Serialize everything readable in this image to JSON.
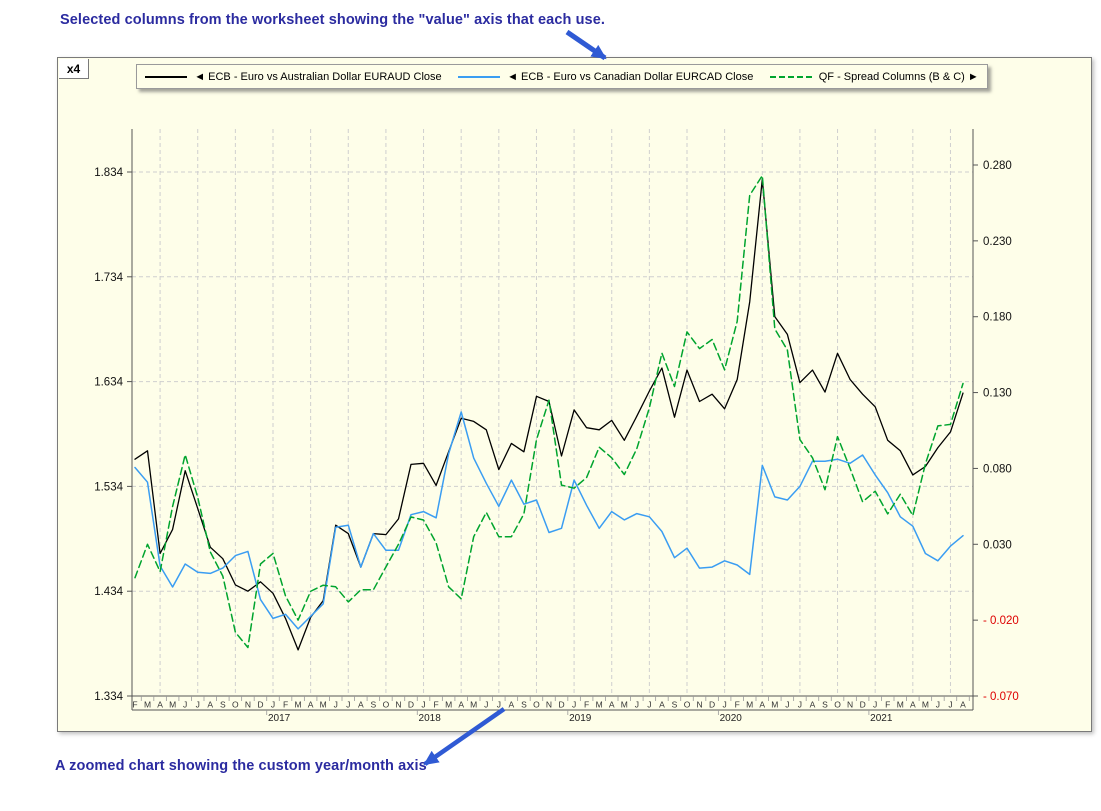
{
  "annotations": {
    "top": "Selected columns from the worksheet showing the \"value\" axis that each use.",
    "bottom": "A zoomed chart showing the custom year/month axis",
    "text_color": "#2B2BA0",
    "arrow_color": "#2F5AD4"
  },
  "corner": {
    "label": "x4"
  },
  "legend": {
    "items": [
      {
        "label": "◄ ECB - Euro  vs Australian Dollar EURAUD Close",
        "series": "euraud"
      },
      {
        "label": "◄ ECB - Euro  vs Canadian Dollar EURCAD Close",
        "series": "eurcad"
      },
      {
        "label": "QF - Spread  Columns  (B & C) ►",
        "series": "spread"
      }
    ]
  },
  "chart_data": {
    "type": "line",
    "title": "",
    "xlabel": "",
    "ylabel_left": "",
    "ylabel_right": "",
    "grid": true,
    "x_start": "Feb 2016",
    "x_end": "Aug 2021",
    "months": [
      "F",
      "M",
      "A",
      "M",
      "J",
      "J",
      "A",
      "S",
      "O",
      "N",
      "D",
      "J",
      "F",
      "M",
      "A",
      "M",
      "J",
      "J",
      "A",
      "S",
      "O",
      "N",
      "D",
      "J",
      "F",
      "M",
      "A",
      "M",
      "J",
      "J",
      "A",
      "S",
      "O",
      "N",
      "D",
      "J",
      "F",
      "M",
      "A",
      "M",
      "J",
      "J",
      "A",
      "S",
      "O",
      "N",
      "D",
      "J",
      "F",
      "M",
      "A",
      "M",
      "J",
      "J",
      "A",
      "S",
      "O",
      "N",
      "D",
      "J",
      "F",
      "M",
      "A",
      "M",
      "J",
      "J",
      "A"
    ],
    "years": [
      {
        "label": "2017",
        "index": 11
      },
      {
        "label": "2018",
        "index": 23
      },
      {
        "label": "2019",
        "index": 35
      },
      {
        "label": "2020",
        "index": 47
      },
      {
        "label": "2021",
        "index": 59
      }
    ],
    "left_axis": {
      "labels": [
        "1.834",
        "1.734",
        "1.634",
        "1.534",
        "1.434",
        "1.334"
      ],
      "values": [
        1.834,
        1.734,
        1.634,
        1.534,
        1.434,
        1.334
      ],
      "min": 1.334,
      "max": 1.834,
      "color": "#111111"
    },
    "right_axis": {
      "labels": [
        "0.280",
        "0.230",
        "0.180",
        "0.130",
        "0.080",
        "0.030",
        "- 0.020",
        "- 0.070"
      ],
      "values": [
        0.28,
        0.23,
        0.18,
        0.13,
        0.08,
        0.03,
        -0.02,
        -0.07
      ],
      "min": -0.07,
      "max": 0.28,
      "color": "#111111",
      "negative_color": "#de0000"
    },
    "series": [
      {
        "id": "euraud",
        "name": "ECB - Euro vs Australian Dollar EURAUD Close",
        "axis": "left",
        "color": "#000000",
        "dash": null,
        "width": 1.3,
        "values": [
          1.56,
          1.568,
          1.47,
          1.493,
          1.549,
          1.513,
          1.476,
          1.465,
          1.44,
          1.434,
          1.443,
          1.432,
          1.408,
          1.378,
          1.409,
          1.425,
          1.497,
          1.489,
          1.457,
          1.489,
          1.488,
          1.503,
          1.555,
          1.556,
          1.535,
          1.567,
          1.599,
          1.596,
          1.588,
          1.55,
          1.575,
          1.567,
          1.62,
          1.615,
          1.563,
          1.607,
          1.59,
          1.588,
          1.597,
          1.578,
          1.601,
          1.625,
          1.647,
          1.6,
          1.645,
          1.615,
          1.622,
          1.608,
          1.636,
          1.71,
          1.827,
          1.696,
          1.679,
          1.633,
          1.645,
          1.624,
          1.661,
          1.636,
          1.622,
          1.61,
          1.578,
          1.568,
          1.545,
          1.553,
          1.571,
          1.586,
          1.623
        ]
      },
      {
        "id": "eurcad",
        "name": "ECB - Euro vs Canadian Dollar EURCAD Close",
        "axis": "left",
        "color": "#3a9df2",
        "dash": null,
        "width": 1.5,
        "values": [
          1.552,
          1.538,
          1.458,
          1.438,
          1.46,
          1.452,
          1.451,
          1.456,
          1.468,
          1.472,
          1.426,
          1.408,
          1.412,
          1.398,
          1.41,
          1.422,
          1.495,
          1.497,
          1.457,
          1.489,
          1.473,
          1.473,
          1.507,
          1.51,
          1.504,
          1.565,
          1.605,
          1.561,
          1.537,
          1.515,
          1.54,
          1.517,
          1.521,
          1.49,
          1.494,
          1.54,
          1.516,
          1.494,
          1.51,
          1.502,
          1.508,
          1.505,
          1.491,
          1.466,
          1.475,
          1.456,
          1.457,
          1.463,
          1.459,
          1.45,
          1.554,
          1.524,
          1.521,
          1.534,
          1.558,
          1.558,
          1.56,
          1.556,
          1.564,
          1.545,
          1.528,
          1.505,
          1.496,
          1.47,
          1.463,
          1.477,
          1.487
        ]
      },
      {
        "id": "spread",
        "name": "QF - Spread Columns (B & C)",
        "axis": "right",
        "color": "#00a42e",
        "dash": "7,4",
        "width": 1.5,
        "values": [
          0.008,
          0.03,
          0.012,
          0.055,
          0.089,
          0.061,
          0.025,
          0.009,
          -0.028,
          -0.038,
          0.017,
          0.024,
          -0.004,
          -0.02,
          -0.001,
          0.003,
          0.002,
          -0.008,
          0.0,
          0.0,
          0.015,
          0.03,
          0.048,
          0.046,
          0.031,
          0.002,
          -0.006,
          0.035,
          0.051,
          0.035,
          0.035,
          0.05,
          0.099,
          0.125,
          0.069,
          0.067,
          0.074,
          0.094,
          0.087,
          0.076,
          0.093,
          0.12,
          0.156,
          0.134,
          0.17,
          0.159,
          0.165,
          0.145,
          0.177,
          0.26,
          0.273,
          0.172,
          0.158,
          0.099,
          0.087,
          0.066,
          0.101,
          0.08,
          0.058,
          0.065,
          0.05,
          0.063,
          0.049,
          0.083,
          0.108,
          0.109,
          0.136
        ]
      }
    ]
  }
}
